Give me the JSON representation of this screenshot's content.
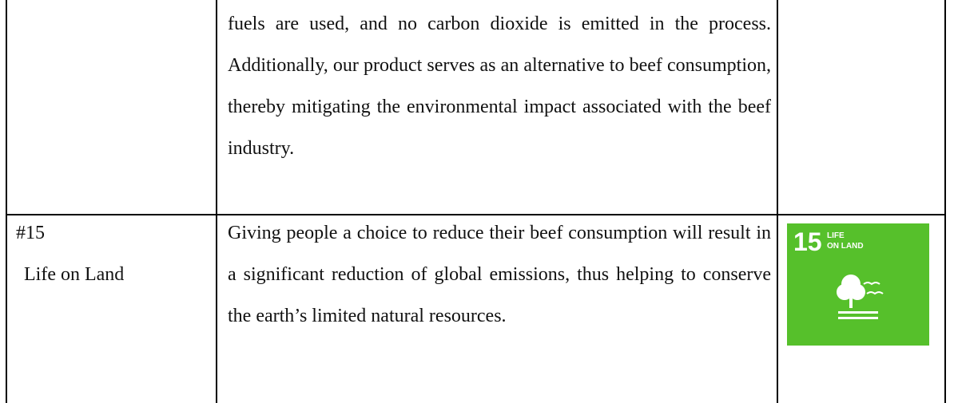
{
  "table": {
    "rows": [
      {
        "description": "fuels are used, and no carbon dioxide is emitted in the process. Additionally, our product serves as an alternative to beef consumption, thereby mitigating the environmental impact associated with the beef industry."
      },
      {
        "goal_number": "#15",
        "goal_name": "Life on Land",
        "description": "Giving people a choice to reduce their beef consumption will result in a significant reduction of global emissions, thus helping to conserve the earth’s limited natural resources.",
        "icon": {
          "number": "15",
          "label_line1": "LIFE",
          "label_line2": "ON LAND"
        }
      }
    ]
  }
}
